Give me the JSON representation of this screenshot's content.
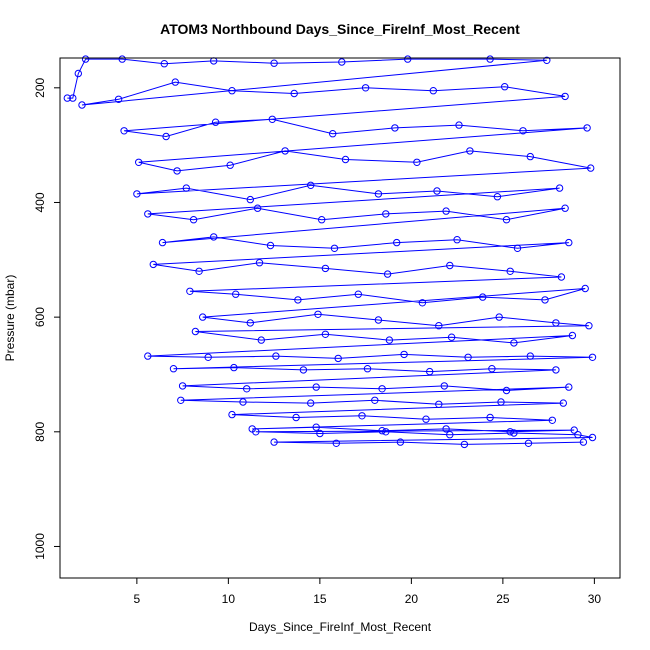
{
  "chart_data": {
    "type": "line",
    "title": "ATOM3 Northbound Days_Since_FireInf_Most_Recent",
    "xlabel": "Days_Since_FireInf_Most_Recent",
    "ylabel": "Pressure (mbar)",
    "xlim": [
      0.8,
      31.4
    ],
    "ylim": [
      1055,
      148
    ],
    "y_reversed": true,
    "xticks": [
      5,
      10,
      15,
      20,
      25,
      30
    ],
    "yticks": [
      200,
      400,
      600,
      800,
      1000
    ],
    "grid": false,
    "series": [
      {
        "color": "#0000ff",
        "marker": "open-circle",
        "points": [
          [
            1.2,
            218
          ],
          [
            1.5,
            218
          ],
          [
            1.8,
            175
          ],
          [
            2.2,
            150
          ],
          [
            4.2,
            150
          ],
          [
            6.5,
            158
          ],
          [
            9.2,
            153
          ],
          [
            12.5,
            157
          ],
          [
            16.2,
            155
          ],
          [
            19.8,
            150
          ],
          [
            24.3,
            150
          ],
          [
            27.4,
            152
          ],
          [
            2.0,
            230
          ],
          [
            4.0,
            220
          ],
          [
            7.1,
            190
          ],
          [
            10.2,
            205
          ],
          [
            13.6,
            210
          ],
          [
            17.5,
            200
          ],
          [
            21.2,
            205
          ],
          [
            25.1,
            198
          ],
          [
            28.4,
            215
          ],
          [
            4.3,
            275
          ],
          [
            6.6,
            285
          ],
          [
            9.3,
            260
          ],
          [
            12.4,
            255
          ],
          [
            15.7,
            280
          ],
          [
            19.1,
            270
          ],
          [
            22.6,
            265
          ],
          [
            26.1,
            275
          ],
          [
            29.6,
            270
          ],
          [
            5.1,
            330
          ],
          [
            7.2,
            345
          ],
          [
            10.1,
            335
          ],
          [
            13.1,
            310
          ],
          [
            16.4,
            325
          ],
          [
            20.3,
            330
          ],
          [
            23.2,
            310
          ],
          [
            26.5,
            320
          ],
          [
            29.8,
            340
          ],
          [
            5.0,
            385
          ],
          [
            7.7,
            375
          ],
          [
            11.2,
            395
          ],
          [
            14.5,
            370
          ],
          [
            18.2,
            385
          ],
          [
            21.4,
            380
          ],
          [
            24.7,
            390
          ],
          [
            28.1,
            375
          ],
          [
            5.6,
            420
          ],
          [
            8.1,
            430
          ],
          [
            11.6,
            410
          ],
          [
            15.1,
            430
          ],
          [
            18.6,
            420
          ],
          [
            21.9,
            415
          ],
          [
            25.2,
            430
          ],
          [
            28.4,
            410
          ],
          [
            6.4,
            470
          ],
          [
            9.2,
            460
          ],
          [
            12.3,
            475
          ],
          [
            15.8,
            480
          ],
          [
            19.2,
            470
          ],
          [
            22.5,
            465
          ],
          [
            25.8,
            480
          ],
          [
            28.6,
            470
          ],
          [
            5.9,
            508
          ],
          [
            8.4,
            520
          ],
          [
            11.7,
            505
          ],
          [
            15.3,
            515
          ],
          [
            18.7,
            525
          ],
          [
            22.1,
            510
          ],
          [
            25.4,
            520
          ],
          [
            28.2,
            530
          ],
          [
            7.9,
            555
          ],
          [
            10.4,
            560
          ],
          [
            13.8,
            570
          ],
          [
            17.1,
            560
          ],
          [
            20.6,
            575
          ],
          [
            23.9,
            565
          ],
          [
            27.3,
            570
          ],
          [
            29.5,
            550
          ],
          [
            8.6,
            600
          ],
          [
            11.2,
            610
          ],
          [
            14.9,
            595
          ],
          [
            18.2,
            605
          ],
          [
            21.5,
            615
          ],
          [
            24.8,
            600
          ],
          [
            27.9,
            610
          ],
          [
            29.7,
            615
          ],
          [
            8.2,
            625
          ],
          [
            11.8,
            640
          ],
          [
            15.3,
            630
          ],
          [
            18.8,
            640
          ],
          [
            22.2,
            635
          ],
          [
            25.6,
            645
          ],
          [
            28.8,
            632
          ],
          [
            5.6,
            668
          ],
          [
            8.9,
            670
          ],
          [
            12.6,
            668
          ],
          [
            16.0,
            672
          ],
          [
            19.6,
            665
          ],
          [
            23.1,
            670
          ],
          [
            26.5,
            668
          ],
          [
            29.9,
            670
          ],
          [
            7.0,
            690
          ],
          [
            10.3,
            688
          ],
          [
            14.1,
            692
          ],
          [
            17.6,
            690
          ],
          [
            21.0,
            695
          ],
          [
            24.4,
            690
          ],
          [
            27.9,
            692
          ],
          [
            7.5,
            720
          ],
          [
            11.0,
            725
          ],
          [
            14.8,
            722
          ],
          [
            18.4,
            725
          ],
          [
            21.8,
            720
          ],
          [
            25.2,
            728
          ],
          [
            28.6,
            722
          ],
          [
            7.4,
            745
          ],
          [
            10.8,
            748
          ],
          [
            14.5,
            750
          ],
          [
            18.0,
            745
          ],
          [
            21.5,
            752
          ],
          [
            24.9,
            748
          ],
          [
            28.3,
            750
          ],
          [
            10.2,
            770
          ],
          [
            13.7,
            775
          ],
          [
            17.3,
            772
          ],
          [
            20.8,
            778
          ],
          [
            24.3,
            775
          ],
          [
            27.7,
            780
          ],
          [
            11.3,
            795
          ],
          [
            14.8,
            792
          ],
          [
            18.4,
            798
          ],
          [
            21.9,
            795
          ],
          [
            25.4,
            800
          ],
          [
            28.9,
            797
          ],
          [
            11.5,
            800
          ],
          [
            15.0,
            803
          ],
          [
            18.6,
            800
          ],
          [
            22.1,
            805
          ],
          [
            25.6,
            802
          ],
          [
            29.1,
            805
          ],
          [
            29.9,
            810
          ],
          [
            12.5,
            818
          ],
          [
            15.9,
            820
          ],
          [
            19.4,
            818
          ],
          [
            22.9,
            822
          ],
          [
            26.4,
            820
          ],
          [
            29.4,
            818
          ]
        ]
      }
    ]
  }
}
